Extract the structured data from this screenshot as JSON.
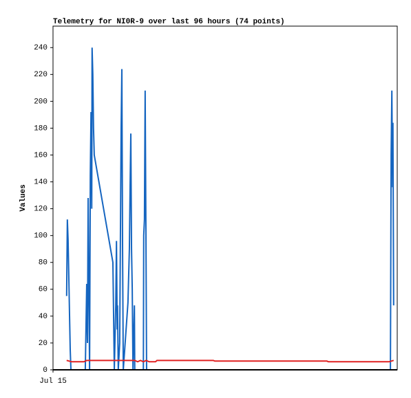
{
  "chart_data": {
    "type": "line",
    "title": "Telemetry for NI0R-9 over last 96 hours (74 points)",
    "ylabel": "Values",
    "xlim": [
      0,
      96
    ],
    "xticks": [
      {
        "value": 0,
        "label": "Jul 15"
      }
    ],
    "ylim": [
      0,
      256
    ],
    "yticks": [
      0,
      20,
      40,
      60,
      80,
      100,
      120,
      140,
      160,
      180,
      200,
      220,
      240
    ],
    "series": [
      {
        "color": "#1565c0",
        "x": [
          3.8,
          4.0,
          4.2,
          4.4,
          4.6,
          4.8,
          5.0,
          9.0,
          9.2,
          9.4,
          9.6,
          9.8,
          10.0,
          10.2,
          10.4,
          10.6,
          10.8,
          10.9,
          11.1,
          11.3,
          11.5,
          16.7,
          16.9,
          17.1,
          17.5,
          17.7,
          17.9,
          18.0,
          18.2,
          18.6,
          19.0,
          19.2,
          19.4,
          19.6,
          20.9,
          21.3,
          21.5,
          21.7,
          21.9,
          22.1,
          22.3,
          22.5,
          22.7,
          22.8,
          25.2,
          25.3,
          25.5,
          25.7,
          25.9,
          26.1,
          94.1,
          94.3,
          94.5,
          94.7,
          94.8,
          95.0
        ],
        "values": [
          55,
          112,
          97,
          70,
          42,
          15,
          0,
          0,
          32,
          64,
          20,
          128,
          60,
          0,
          145,
          192,
          120,
          240,
          220,
          180,
          160,
          80,
          40,
          0,
          48,
          96,
          30,
          48,
          0,
          20,
          180,
          224,
          90,
          0,
          50,
          90,
          136,
          176,
          90,
          60,
          0,
          25,
          48,
          0,
          0,
          100,
          112,
          208,
          110,
          0,
          0,
          160,
          208,
          136,
          184,
          48
        ]
      },
      {
        "color": "#e02020",
        "x": [
          3.8,
          5.2,
          8.6,
          9.4,
          22.8,
          23.6,
          24.4,
          25.2,
          26.0,
          26.8,
          28.6,
          29.0,
          44.7,
          45.1,
          76.4,
          76.8,
          93.7,
          95.0
        ],
        "values": [
          7,
          6,
          6,
          7,
          7,
          6,
          7,
          6,
          7,
          6,
          6,
          7,
          7,
          6.5,
          6.5,
          6,
          6,
          7
        ]
      }
    ]
  }
}
